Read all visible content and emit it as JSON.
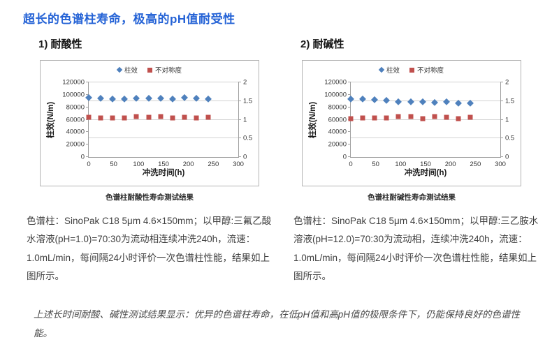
{
  "title": "超长的色谱柱寿命，极高的pH值耐受性",
  "sections": [
    {
      "heading": "1) 耐酸性",
      "description": "色谱柱：SinoPak C18 5μm 4.6×150mm；以甲醇:三氟乙酸水溶液(pH=1.0)=70:30为流动相连续冲洗240h，流速：1.0mL/min，每间隔24小时评价一次色谱柱性能，结果如上图所示。"
    },
    {
      "heading": "2) 耐碱性",
      "description": "色谱柱：SinoPak C18 5μm 4.6×150mm；以甲醇:三乙胺水溶液(pH=12.0)=70:30为流动相，连续冲洗240h，流速：1.0mL/min，每间隔24小时评价一次色谱柱性能，结果如上图所示。"
    }
  ],
  "footer": "上述长时间耐酸、碱性测试结果显示：优异的色谱柱寿命，在低pH值和高pH值的极限条件下，仍能保持良好的色谱性能。",
  "colors": {
    "title_blue": "#2563d6",
    "efficiency_series": "#4F81BD",
    "asymmetry_series": "#C0504D"
  },
  "chart_data": [
    {
      "type": "scatter",
      "title": "色谱柱耐酸性寿命测试结果",
      "xlabel": "冲洗时间(h)",
      "ylabel_left": "柱效(N/m)",
      "x": [
        0,
        24,
        48,
        72,
        96,
        120,
        144,
        168,
        192,
        216,
        240
      ],
      "series": [
        {
          "name": "柱效",
          "axis": "left",
          "marker": "diamond",
          "color": "#4F81BD",
          "values": [
            95800,
            94300,
            93900,
            94100,
            94800,
            94400,
            95300,
            94200,
            95700,
            94700,
            94000
          ]
        },
        {
          "name": "不对称度",
          "axis": "right",
          "marker": "square",
          "color": "#C0504D",
          "values": [
            1.07,
            1.05,
            1.05,
            1.05,
            1.08,
            1.06,
            1.08,
            1.05,
            1.07,
            1.05,
            1.07
          ]
        }
      ],
      "xlim": [
        0,
        300
      ],
      "xticks": [
        0,
        50,
        100,
        150,
        200,
        250,
        300
      ],
      "ylim_left": [
        0,
        120000
      ],
      "yticks_left": [
        0,
        20000,
        40000,
        60000,
        80000,
        100000,
        120000
      ],
      "ylim_right": [
        0,
        2
      ],
      "yticks_right": [
        0,
        0.5,
        1,
        1.5,
        2
      ],
      "grid": true,
      "legend_position": "top"
    },
    {
      "type": "scatter",
      "title": "色谱柱耐碱性寿命测试结果",
      "xlabel": "冲洗时间(h)",
      "ylabel_left": "柱效(N/m)",
      "x": [
        0,
        24,
        48,
        72,
        96,
        120,
        144,
        168,
        192,
        216,
        240
      ],
      "series": [
        {
          "name": "柱效",
          "axis": "left",
          "marker": "diamond",
          "color": "#4F81BD",
          "values": [
            94000,
            93300,
            93100,
            91700,
            89200,
            89300,
            89500,
            87900,
            88700,
            87200,
            87100
          ]
        },
        {
          "name": "不对称度",
          "axis": "right",
          "marker": "square",
          "color": "#C0504D",
          "values": [
            1.02,
            1.05,
            1.05,
            1.05,
            1.08,
            1.08,
            1.03,
            1.09,
            1.06,
            1.02,
            1.06
          ]
        }
      ],
      "xlim": [
        0,
        300
      ],
      "xticks": [
        0,
        50,
        100,
        150,
        200,
        250,
        300
      ],
      "ylim_left": [
        0,
        120000
      ],
      "yticks_left": [
        0,
        20000,
        40000,
        60000,
        80000,
        100000,
        120000
      ],
      "ylim_right": [
        0,
        2
      ],
      "yticks_right": [
        0,
        0.5,
        1,
        1.5,
        2
      ],
      "grid": true,
      "legend_position": "top"
    }
  ]
}
